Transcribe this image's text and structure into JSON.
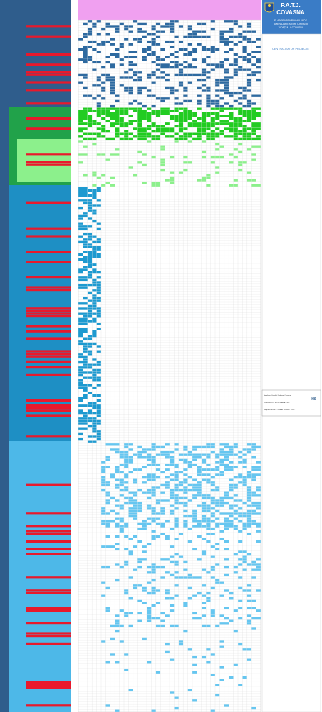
{
  "header": {
    "title_main": "P.A.T.J.",
    "title_county": "COVASNA",
    "subtitle_lines": [
      "ELABORAREA PLANULUI DE",
      "AMENAJARE A TERITORIULUI",
      "JUDEȚULUI COVASNA"
    ],
    "section_label": "CENTRALIZATOR PROIECTE"
  },
  "legend": {
    "top_right_label": "IHS",
    "blocks": [
      "Beneficiar: Consiliul Județean Covasna",
      "Proiectant: S.C. IHS ROMANIA S.R.L.",
      "Subproiectant: S.C. URBAN PROIECT S.R.L."
    ]
  },
  "colors": {
    "band1": "#2f5d8c",
    "band1_cells": "#2e6aa0",
    "band2": "#21a24a",
    "band2_cells": "#22cc22",
    "band2_light": "#8cf08c",
    "band3": "#1e8fc4",
    "band3_cells": "#1e9ad0",
    "band4": "#4db8e8",
    "band4_cells": "#66c6f0",
    "red_row": "#e8192c",
    "magenta_header": "#f0a0f0",
    "grid": "#d6d6d6"
  }
}
